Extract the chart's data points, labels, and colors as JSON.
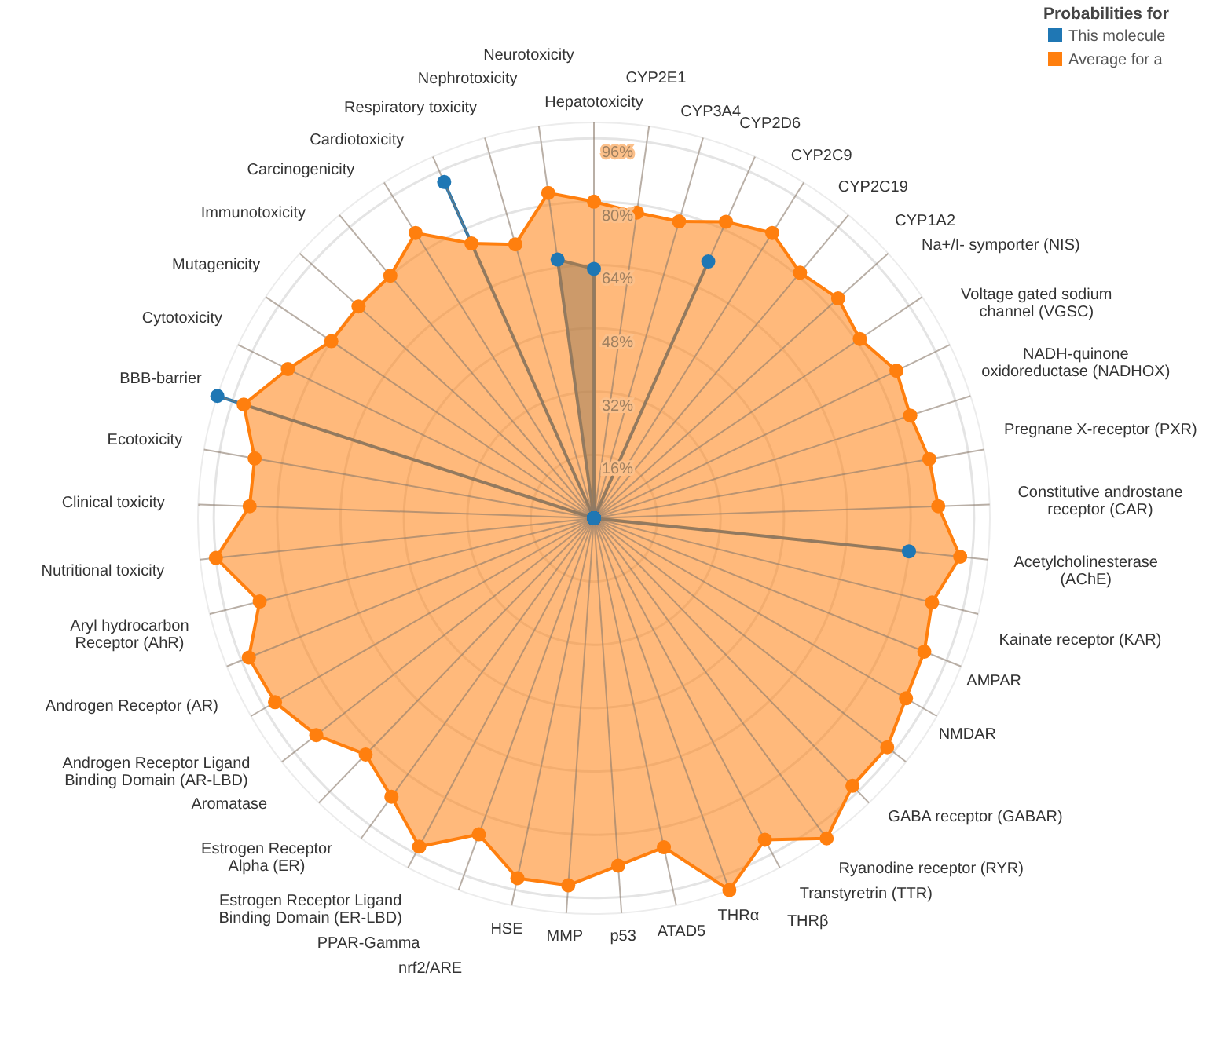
{
  "chart_data": {
    "type": "radar",
    "categories": [
      "Hepatotoxicity",
      "CYP2E1",
      "CYP3A4",
      "CYP2D6",
      "CYP2C9",
      "CYP2C19",
      "CYP1A2",
      "Na+/I- symporter (NIS)",
      "Voltage gated sodium channel (VGSC)",
      "NADH-quinone oxidoreductase (NADHOX)",
      "Pregnane X-receptor (PXR)",
      "Constitutive androstane receptor (CAR)",
      "Acetylcholinesterase (AChE)",
      "Kainate receptor (KAR)",
      "AMPAR",
      "NMDAR",
      "GABA receptor (GABAR)",
      "Ryanodine receptor (RYR)",
      "Transtyretrin (TTR)",
      "THRβ",
      "THRα",
      "ATAD5",
      "p53",
      "MMP",
      "HSE",
      "nrf2/ARE",
      "PPAR-Gamma",
      "Estrogen Receptor Ligand Binding Domain (ER-LBD)",
      "Estrogen Receptor Alpha (ER)",
      "Aromatase",
      "Androgen Receptor Ligand Binding Domain (AR-LBD)",
      "Androgen Receptor (AR)",
      "Aryl hydrocarbon Receptor (AhR)",
      "Nutritional toxicity",
      "Clinical toxicity",
      "Ecotoxicity",
      "BBB-barrier",
      "Cytotoxicity",
      "Mutagenicity",
      "Immunotoxicity",
      "Carcinogenicity",
      "Cardiotoxicity",
      "Respiratory toxicity",
      "Nephrotoxicity",
      "Neurotoxicity"
    ],
    "series": [
      {
        "name": "This molecule",
        "color": "#1f77b4",
        "values": [
          63,
          0,
          0,
          71,
          0,
          0,
          0,
          0,
          0,
          0,
          0,
          0,
          80,
          0,
          0,
          0,
          0,
          0,
          0,
          0,
          0,
          0,
          0,
          0,
          0,
          0,
          0,
          0,
          0,
          0,
          0,
          0,
          0,
          0,
          0,
          0,
          100,
          0,
          0,
          0,
          0,
          0,
          93,
          0,
          66
        ]
      },
      {
        "name": "Average for a",
        "color": "#ff7f0e",
        "values": [
          80,
          78,
          78,
          82,
          85,
          81,
          83,
          81,
          85,
          84,
          86,
          87,
          93,
          88,
          90,
          91,
          94,
          94,
          100,
          92,
          100,
          85,
          88,
          93,
          93,
          85,
          94,
          87,
          83,
          89,
          93,
          94,
          87,
          96,
          87,
          87,
          93,
          86,
          80,
          80,
          80,
          85,
          76,
          72,
          83
        ]
      }
    ],
    "ylim": [
      0,
      100
    ],
    "yticks": [
      {
        "value": 16,
        "label": "16%"
      },
      {
        "value": 32,
        "label": "32%"
      },
      {
        "value": 48,
        "label": "48%"
      },
      {
        "value": 64,
        "label": "64%"
      },
      {
        "value": 80,
        "label": "80%"
      },
      {
        "value": 96,
        "label": "96%"
      }
    ],
    "grid": true,
    "marker": "circle",
    "legend": "top right",
    "legend_title": "Probabilities for"
  }
}
